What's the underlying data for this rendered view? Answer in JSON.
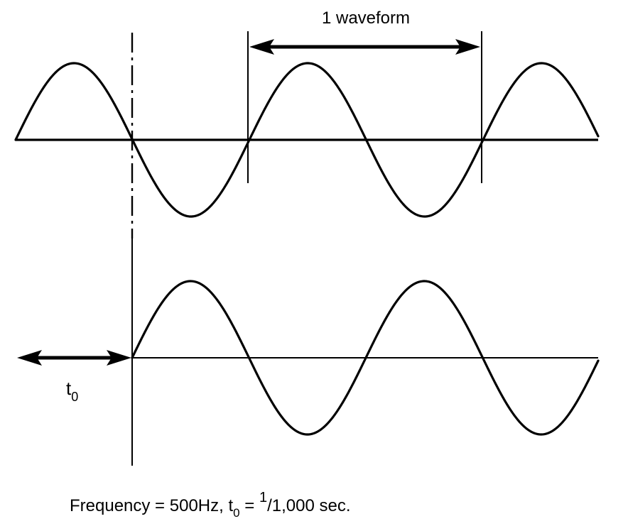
{
  "labels": {
    "waveform": "1 waveform",
    "t_main": "t",
    "t_sub": "0",
    "caption_part1": "Frequency = 500Hz, t",
    "caption_sub": "0",
    "caption_eq": " = ",
    "caption_sup": "1",
    "caption_part2": "/1,000 sec."
  },
  "colors": {
    "stroke": "#000000",
    "background": "#ffffff"
  }
}
